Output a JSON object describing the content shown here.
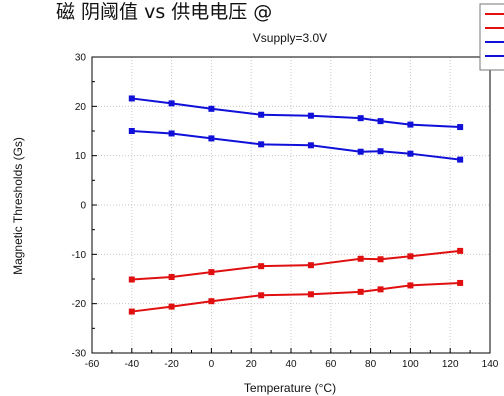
{
  "chart_data": {
    "type": "line",
    "title": "磁 阴阈值 vs 供电电压 @",
    "subtitle": "Vsupply=3.0V",
    "xlabel": "Temperature (°C)",
    "ylabel": "Magnetic Thresholds (Gs)",
    "xlim": [
      -60,
      140
    ],
    "ylim": [
      -30,
      30
    ],
    "xticks": [
      -60,
      -40,
      -20,
      0,
      20,
      40,
      60,
      80,
      100,
      120,
      140
    ],
    "yticks": [
      -30,
      -20,
      -10,
      0,
      10,
      20,
      30
    ],
    "grid": true,
    "legend": "top-right (partially cropped, no visible labels)",
    "x": [
      -40,
      -20,
      0,
      25,
      50,
      75,
      85,
      100,
      125
    ],
    "series": [
      {
        "color": "#1010d8",
        "values": [
          21.6,
          20.6,
          19.5,
          18.3,
          18.1,
          17.6,
          17.0,
          16.3,
          15.8
        ]
      },
      {
        "color": "#1010d8",
        "values": [
          15.0,
          14.5,
          13.5,
          12.3,
          12.1,
          10.8,
          10.9,
          10.4,
          9.2
        ]
      },
      {
        "color": "#e01010",
        "values": [
          -15.1,
          -14.6,
          -13.6,
          -12.4,
          -12.2,
          -10.9,
          -11.0,
          -10.4,
          -9.3
        ]
      },
      {
        "color": "#e01010",
        "values": [
          -21.6,
          -20.6,
          -19.5,
          -18.3,
          -18.1,
          -17.6,
          -17.1,
          -16.3,
          -15.8
        ]
      }
    ],
    "legend_colors": [
      "#e01010",
      "#e01010",
      "#1010d8",
      "#1010d8"
    ]
  }
}
